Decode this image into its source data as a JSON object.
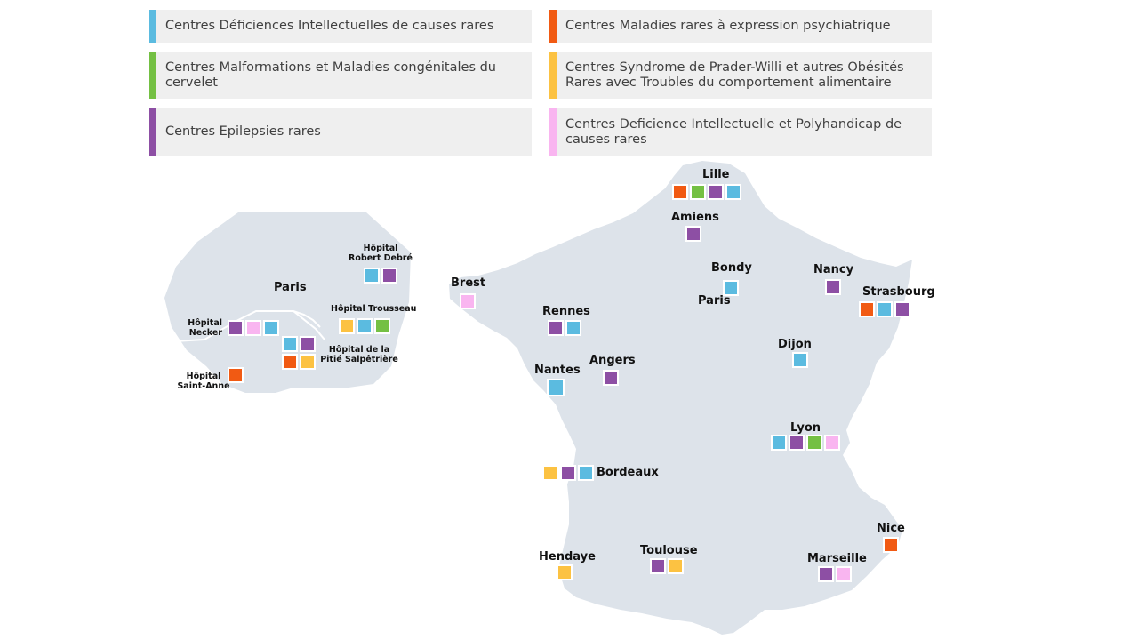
{
  "colors": {
    "blue": "#5bbbe0",
    "orange": "#f15a13",
    "green": "#74c043",
    "yellow": "#fcc242",
    "purple": "#8d4fa4",
    "pink": "#f9b5f0",
    "map_fill": "#dde3ea"
  },
  "legend": [
    {
      "color": "#5bbbe0",
      "label": "Centres Déficiences Intellectuelles de causes rares"
    },
    {
      "color": "#74c043",
      "label": "Centres Malformations et Maladies congénitales du cervelet"
    },
    {
      "color": "#8d4fa4",
      "label": "Centres Epilepsies rares"
    },
    {
      "color": "#f15a13",
      "label": "Centres Maladies rares à expression psychiatrique"
    },
    {
      "color": "#fcc242",
      "label": "Centres Syndrome de Prader-Willi et autres Obésités Rares avec Troubles du comportement alimentaire"
    },
    {
      "color": "#f9b5f0",
      "label": "Centres Deficience Intellectuelle et Polyhandicap de causes rares"
    }
  ],
  "cities": {
    "lille": "Lille",
    "amiens": "Amiens",
    "brest": "Brest",
    "bondy": "Bondy",
    "paris": "Paris",
    "nancy": "Nancy",
    "strasbourg": "Strasbourg",
    "rennes": "Rennes",
    "angers": "Angers",
    "nantes": "Nantes",
    "dijon": "Dijon",
    "lyon": "Lyon",
    "bordeaux": "Bordeaux",
    "nice": "Nice",
    "hendaye": "Hendaye",
    "toulouse": "Toulouse",
    "marseille": "Marseille"
  },
  "paris_inset": {
    "title": "Paris",
    "robert_debre_1": "Hôpital",
    "robert_debre_2": "Robert Debré",
    "trousseau": "Hôpital Trousseau",
    "necker_1": "Hôpital",
    "necker_2": "Necker",
    "pitie_1": "Hôpital de la",
    "pitie_2": "Pitié Salpêtrière",
    "saint_anne_1": "Hôpital",
    "saint_anne_2": "Saint-Anne"
  }
}
